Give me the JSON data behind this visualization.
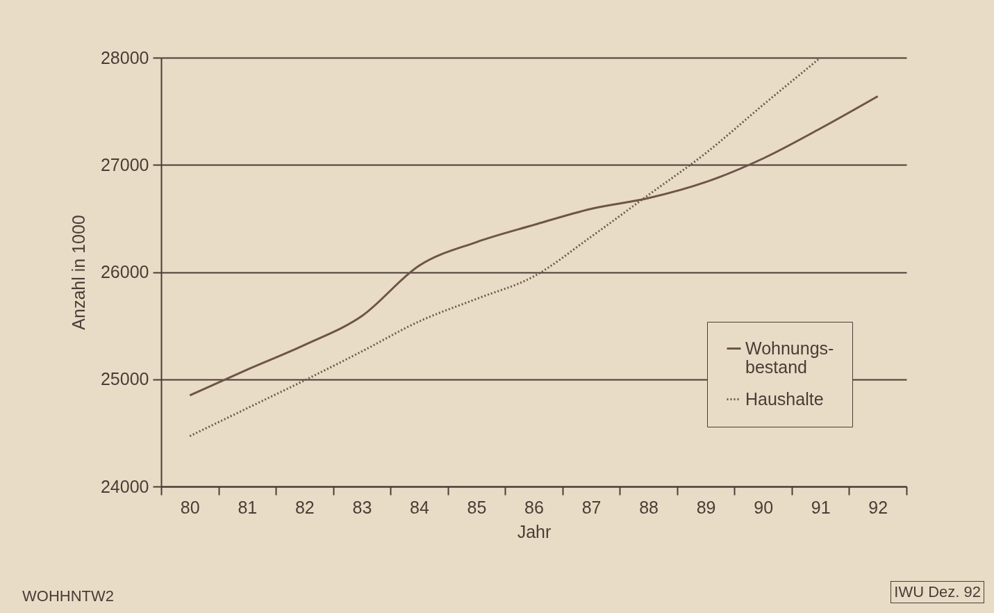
{
  "chart_data": {
    "type": "line",
    "xlabel": "Jahr",
    "ylabel": "Anzahl in 1000",
    "categories": [
      "80",
      "81",
      "82",
      "83",
      "84",
      "85",
      "86",
      "87",
      "88",
      "89",
      "90",
      "91",
      "92"
    ],
    "series": [
      {
        "name": "Wohnungs-\nbestand",
        "color": "#6e5449",
        "line_style": "solid",
        "values": [
          24850,
          25090,
          25320,
          25590,
          26060,
          26280,
          26440,
          26590,
          26690,
          26840,
          27060,
          27340,
          27640
        ]
      },
      {
        "name": "Haushalte",
        "color": "#6e5449",
        "line_style": "dotted",
        "values": [
          24470,
          24730,
          24990,
          25260,
          25540,
          25750,
          25960,
          26330,
          26720,
          27110,
          27560,
          28000,
          null
        ]
      }
    ],
    "ylim": [
      24000,
      28000
    ],
    "yticks": [
      24000,
      25000,
      26000,
      27000,
      28000
    ],
    "grid": "y",
    "legend": "bottom right",
    "annotations": [
      "WOHHNTW2",
      "IWU Dez. 92"
    ]
  }
}
